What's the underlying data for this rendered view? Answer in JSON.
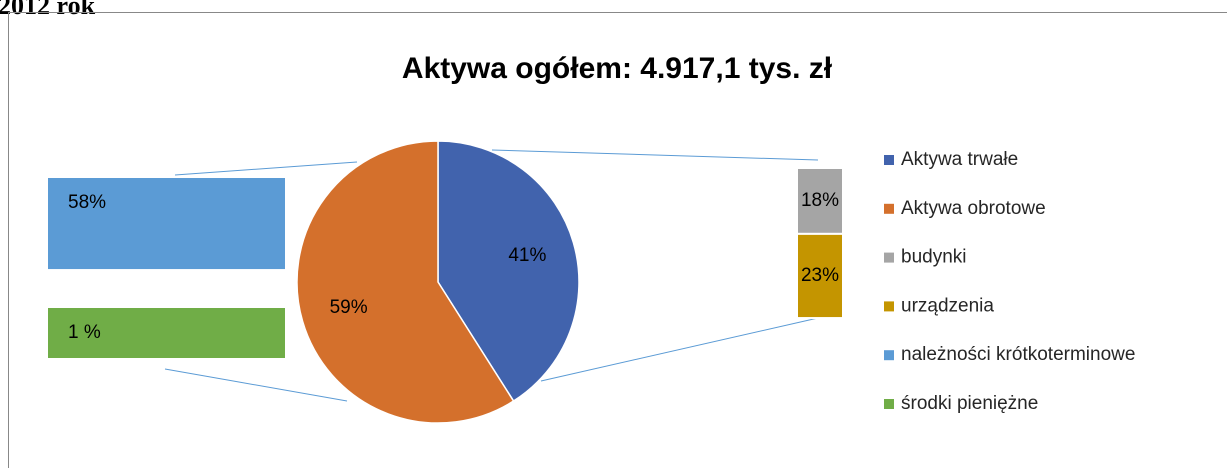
{
  "header": {
    "title": "2012 rok"
  },
  "chart_data": {
    "type": "pie",
    "title": "Aktywa ogółem: 4.917,1 tys. zł",
    "categories": [
      "Aktywa trwałe",
      "Aktywa obrotowe"
    ],
    "values": [
      41,
      59
    ],
    "value_labels": [
      "41%",
      "59%"
    ],
    "colors": [
      "#4163ad",
      "#d4702c"
    ],
    "breakdowns": [
      {
        "categories": [
          "budynki",
          "urządzenia"
        ],
        "values": [
          18,
          23
        ],
        "value_labels": [
          "18%",
          "23%"
        ],
        "colors": [
          "#a5a5a5",
          "#c49500"
        ]
      },
      {
        "categories": [
          "należności krótkoterminowe",
          "środki pieniężne"
        ],
        "values": [
          58,
          1
        ],
        "value_labels": [
          "58%",
          "1 %"
        ],
        "colors": [
          "#5b9bd5",
          "#70ad47"
        ]
      }
    ]
  }
}
